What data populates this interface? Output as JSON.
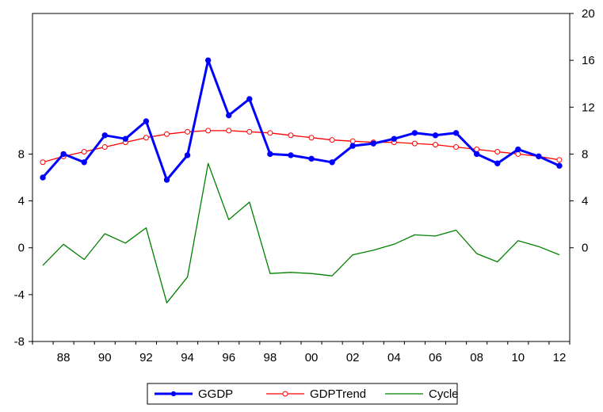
{
  "chart_data": {
    "type": "line",
    "x": [
      "87",
      "88",
      "89",
      "90",
      "91",
      "92",
      "93",
      "94",
      "95",
      "96",
      "97",
      "98",
      "99",
      "00",
      "01",
      "02",
      "03",
      "04",
      "05",
      "06",
      "07",
      "08",
      "09",
      "10",
      "11",
      "12"
    ],
    "x_tick_labels": [
      "88",
      "90",
      "92",
      "94",
      "96",
      "98",
      "00",
      "02",
      "04",
      "06",
      "08",
      "10",
      "12"
    ],
    "left_axis": {
      "ylim": [
        -8,
        20
      ],
      "ticks": [
        "8",
        "4",
        "0",
        "-4",
        "-8"
      ]
    },
    "right_axis": {
      "ylim": [
        -8,
        20
      ],
      "ticks": [
        "20",
        "16",
        "12",
        "8",
        "4",
        "0"
      ]
    },
    "series": [
      {
        "name": "GGDP",
        "axis": "right",
        "color": "#0000ff",
        "marker": "filled-circle",
        "values": [
          6.0,
          8.0,
          7.3,
          9.6,
          9.3,
          10.8,
          5.8,
          7.9,
          16.0,
          11.3,
          12.7,
          8.0,
          7.9,
          7.6,
          7.3,
          8.7,
          8.9,
          9.3,
          9.8,
          9.6,
          9.8,
          8.0,
          7.2,
          8.4,
          7.8,
          7.0
        ]
      },
      {
        "name": "GDPTrend",
        "axis": "right",
        "color": "#ff0000",
        "marker": "open-circle",
        "values": [
          7.3,
          7.8,
          8.2,
          8.6,
          9.0,
          9.4,
          9.7,
          9.9,
          10.0,
          10.0,
          9.9,
          9.8,
          9.6,
          9.4,
          9.2,
          9.1,
          9.0,
          9.0,
          8.9,
          8.8,
          8.6,
          8.4,
          8.2,
          8.0,
          7.8,
          7.5
        ]
      },
      {
        "name": "Cycle",
        "axis": "left",
        "color": "#008000",
        "marker": "none",
        "values": [
          -1.5,
          0.3,
          -1.0,
          1.2,
          0.4,
          1.7,
          -4.7,
          -2.5,
          7.2,
          2.4,
          3.9,
          -2.2,
          -2.1,
          -2.2,
          -2.4,
          -0.6,
          -0.2,
          0.3,
          1.1,
          1.0,
          1.5,
          -0.5,
          -1.2,
          0.6,
          0.1,
          -0.6
        ]
      }
    ],
    "legend": {
      "position": "bottom-center",
      "entries": [
        "GGDP",
        "GDPTrend",
        "Cycle"
      ]
    },
    "grid": false
  }
}
